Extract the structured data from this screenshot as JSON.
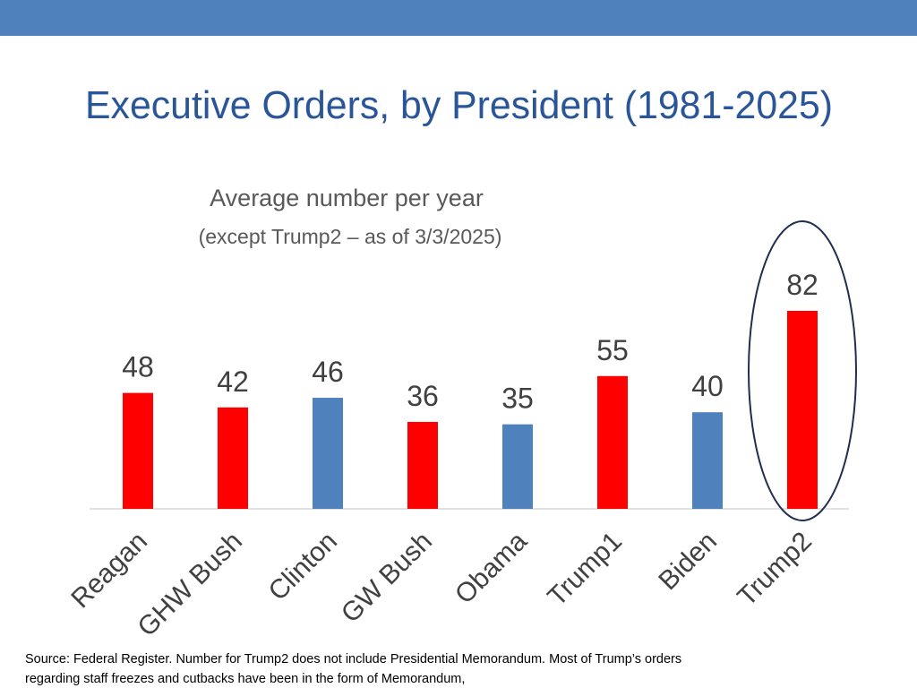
{
  "chart_data": {
    "type": "bar",
    "title": "Executive Orders, by President (1981-2025)",
    "subtitle": "Average number per year",
    "note": "(except Trump2 – as of 3/3/2025)",
    "categories": [
      "Reagan",
      "GHW Bush",
      "Clinton",
      "GW Bush",
      "Obama",
      "Trump1",
      "Biden",
      "Trump2"
    ],
    "values": [
      48,
      42,
      46,
      36,
      35,
      55,
      40,
      82
    ],
    "colors": [
      "#ff0000",
      "#ff0000",
      "#4f81bd",
      "#ff0000",
      "#4f81bd",
      "#ff0000",
      "#4f81bd",
      "#ff0000"
    ]
  },
  "source": [
    "Source: Federal Register. Number for Trump2 does not include Presidential Memorandum. Most of Trump’s orders",
    "regarding staff freezes and cutbacks have been in the form of Memorandum,"
  ]
}
